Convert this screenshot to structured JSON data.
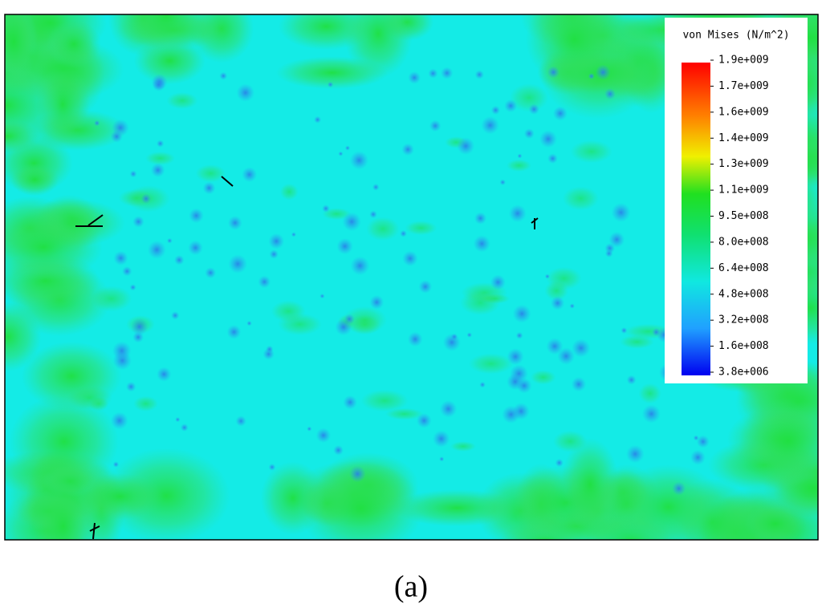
{
  "legend": {
    "title": "von Mises (N/m^2)",
    "labels": [
      "1.9e+009",
      "1.7e+009",
      "1.6e+009",
      "1.4e+009",
      "1.3e+009",
      "1.1e+009",
      "9.5e+008",
      "8.0e+008",
      "6.4e+008",
      "4.8e+008",
      "3.2e+008",
      "1.6e+008",
      "3.8e+006"
    ]
  },
  "caption": "(a)"
}
